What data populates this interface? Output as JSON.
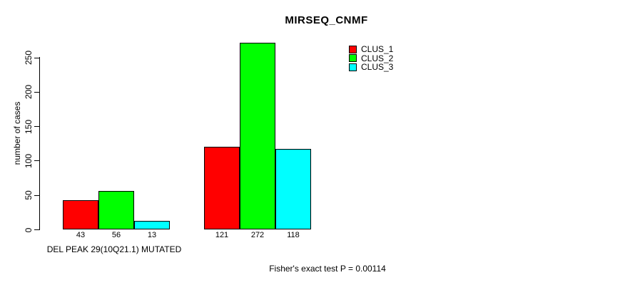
{
  "chart_data": {
    "type": "bar",
    "title": "MIRSEQ_CNMF",
    "ylabel": "number of cases",
    "xlabel": "",
    "ylim": [
      0,
      250
    ],
    "yticks": [
      0,
      50,
      100,
      150,
      200,
      250
    ],
    "grid": false,
    "legend_position": "top-right",
    "series": [
      {
        "name": "CLUS_1",
        "color": "#FF0000"
      },
      {
        "name": "CLUS_2",
        "color": "#00FF00"
      },
      {
        "name": "CLUS_3",
        "color": "#00FFFF"
      }
    ],
    "groups": [
      {
        "label": "DEL PEAK 29(10Q21.1) MUTATED",
        "values": [
          43,
          56,
          13
        ]
      },
      {
        "label": "",
        "values": [
          121,
          272,
          118
        ]
      }
    ],
    "footer": "Fisher's exact test P = 0.00114"
  }
}
